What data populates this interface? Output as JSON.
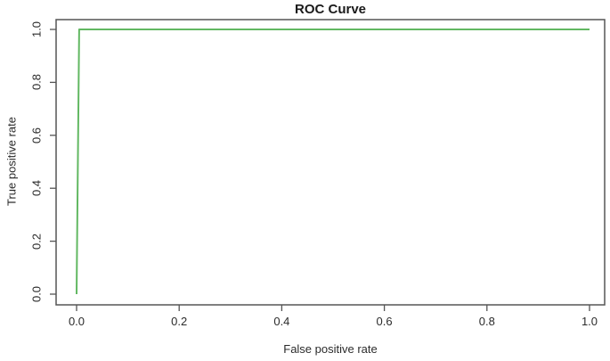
{
  "chart_data": {
    "type": "line",
    "title": "ROC Curve",
    "xlabel": "False positive rate",
    "ylabel": "True positive rate",
    "xlim": [
      0,
      1
    ],
    "ylim": [
      0,
      1
    ],
    "x_tick_values": [
      0,
      0.2,
      0.4,
      0.6,
      0.8,
      1.0
    ],
    "x_tick_labels": [
      "0.0",
      "0.2",
      "0.4",
      "0.6",
      "0.8",
      "1.0"
    ],
    "y_tick_values": [
      0,
      0.2,
      0.4,
      0.6,
      0.8,
      1.0
    ],
    "y_tick_labels": [
      "0.0",
      "0.2",
      "0.4",
      "0.6",
      "0.8",
      "1.0"
    ],
    "grid": false,
    "series": [
      {
        "name": "ROC curve",
        "color": "#62b862",
        "x": [
          0,
          0.005,
          1
        ],
        "y": [
          0,
          1,
          1
        ]
      }
    ],
    "axis_color": "#555555",
    "text_color": "#2b2b2b"
  }
}
